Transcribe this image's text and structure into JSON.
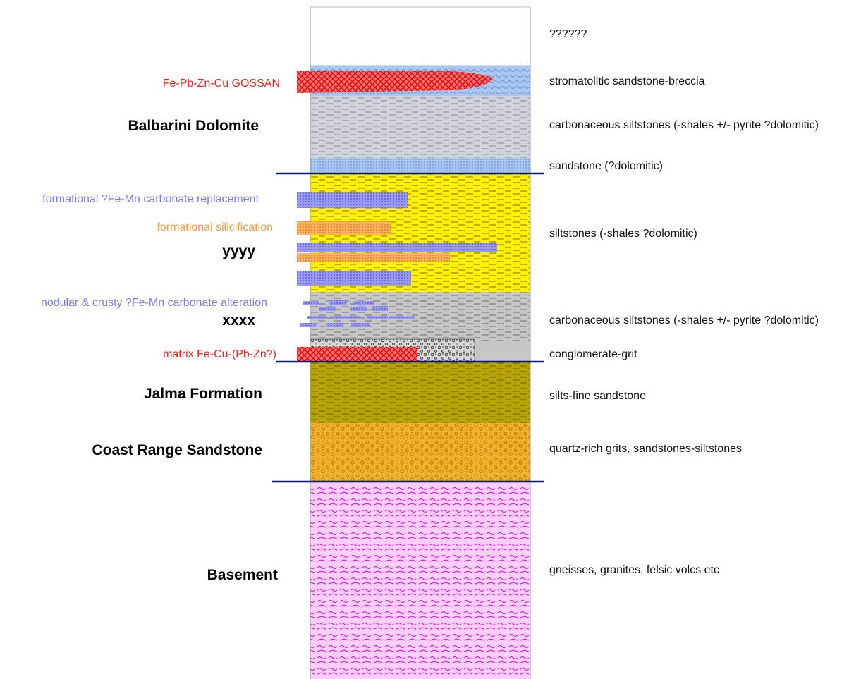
{
  "colors": {
    "red": "#ff1a1a",
    "blue": "#7b7bf0",
    "orange": "#ff9933",
    "contact": "#0a1a6e"
  },
  "units": [
    {
      "name": "Balbarini Dolomite"
    },
    {
      "name": "yyyy"
    },
    {
      "name": "xxxx"
    },
    {
      "name": "Jalma Formation"
    },
    {
      "name": "Coast Range Sandstone"
    },
    {
      "name": "Basement"
    }
  ],
  "lithologies": [
    {
      "label": "??????"
    },
    {
      "label": "stromatolitic sandstone-breccia"
    },
    {
      "label": "carbonaceous siltstones (-shales +/- pyrite ?dolomitic)"
    },
    {
      "label": "sandstone (?dolomitic)"
    },
    {
      "label": "siltstones (-shales ?dolomitic)"
    },
    {
      "label": "carbonaceous siltstones (-shales +/- pyrite ?dolomitic)"
    },
    {
      "label": "conglomerate-grit"
    },
    {
      "label": "silts-fine sandstone"
    },
    {
      "label": "quartz-rich grits, sandstones-siltstones"
    },
    {
      "label": "gneisses, granites, felsic volcs etc"
    }
  ],
  "annotations": [
    {
      "label": "Fe-Pb-Zn-Cu GOSSAN",
      "color": "#ff1a1a"
    },
    {
      "label": "formational ?Fe-Mn carbonate replacement",
      "color": "#7b7bf0"
    },
    {
      "label": "formational silicification",
      "color": "#ff9933"
    },
    {
      "label": "nodular & crusty ?Fe-Mn carbonate alteration",
      "color": "#7b7bf0"
    },
    {
      "label": "matrix Fe-Cu-(Pb-Zn?)",
      "color": "#ff1a1a"
    }
  ]
}
